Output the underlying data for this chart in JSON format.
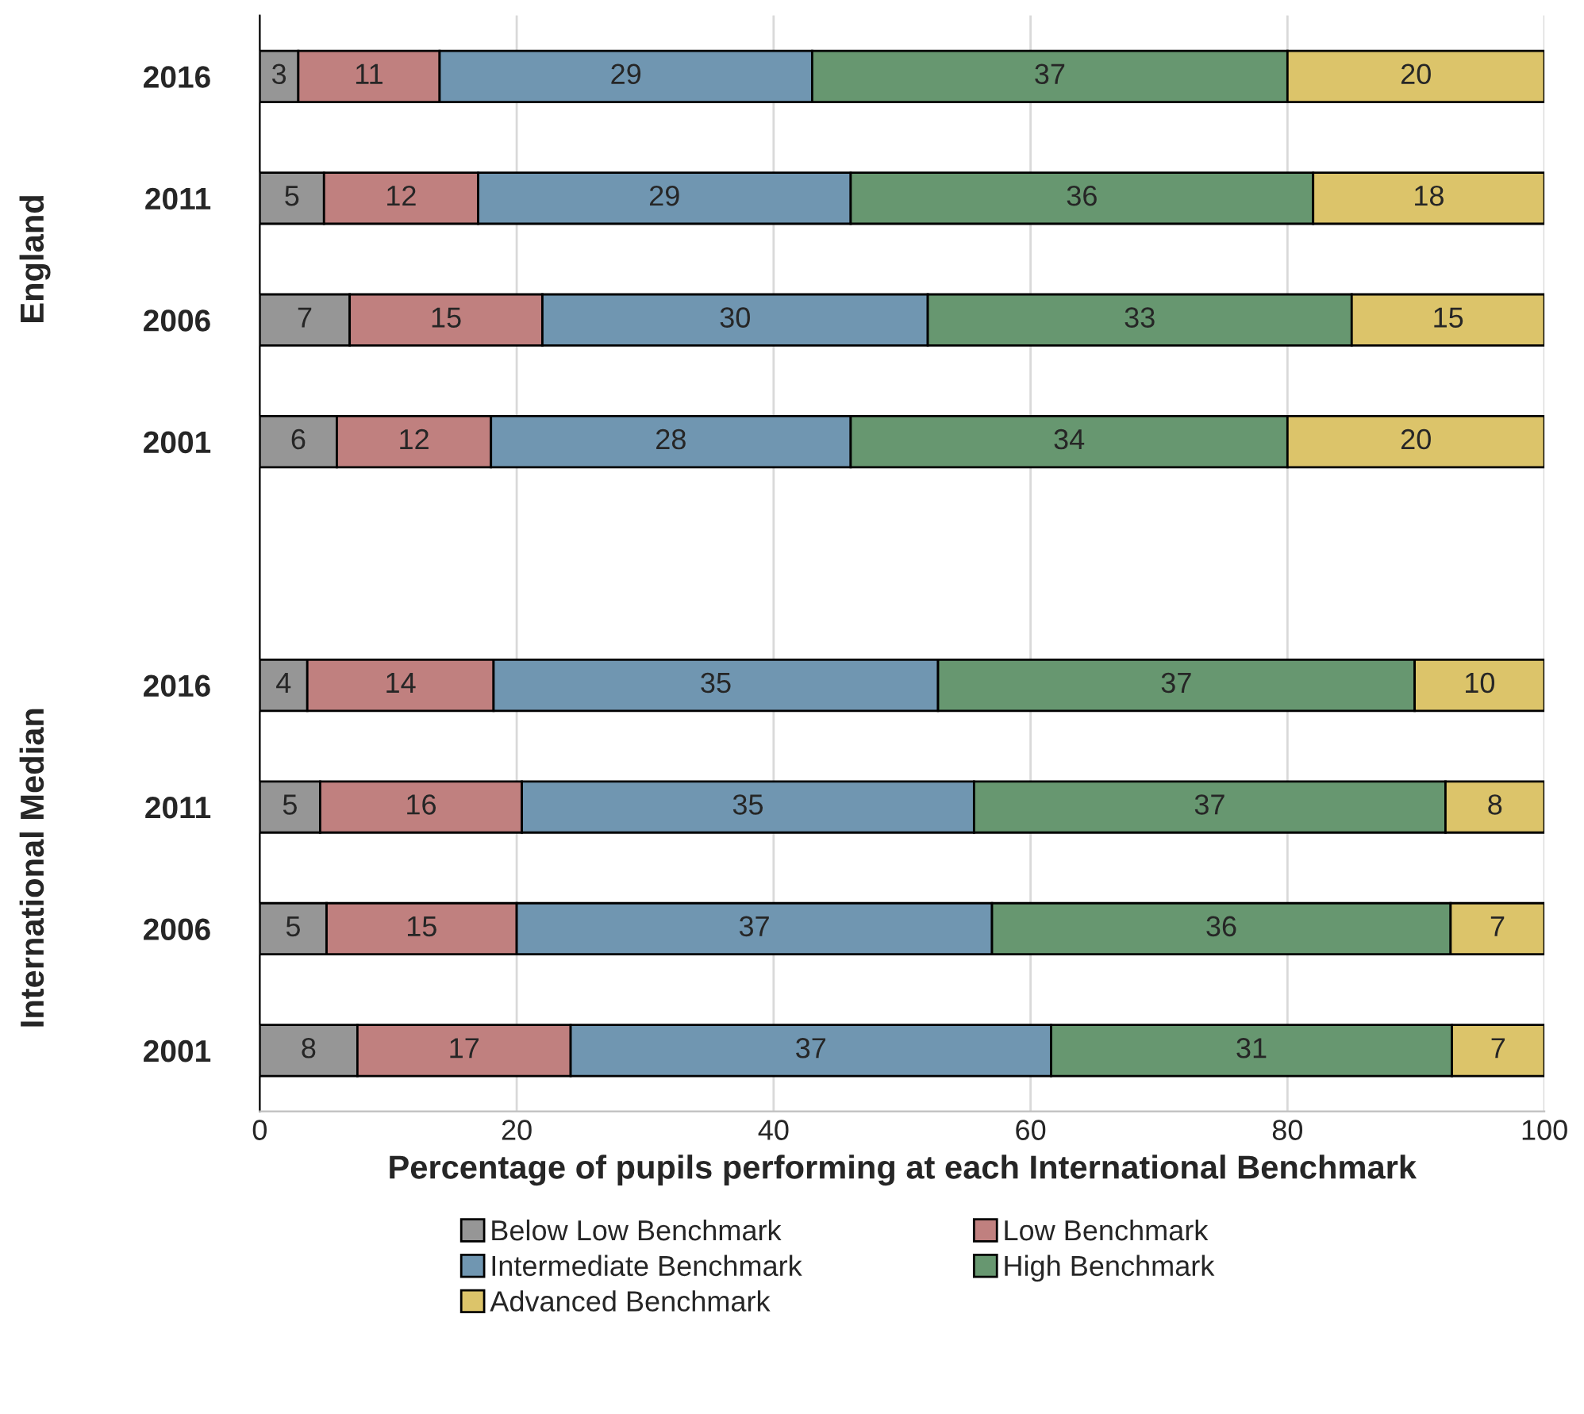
{
  "chart_data": {
    "type": "bar",
    "orientation": "horizontal",
    "stacked": true,
    "xlabel": "Percentage of pupils performing at each International Benchmark",
    "categories": [
      "2016",
      "2011",
      "2006",
      "2001",
      null,
      "2016",
      "2011",
      "2006",
      "2001"
    ],
    "annotations": [
      "England",
      "International Median"
    ],
    "series": [
      {
        "name": "Below Low Benchmark",
        "color": "#969696",
        "values": [
          3,
          5,
          7,
          6,
          null,
          3.7,
          4.7,
          5.2,
          7.6
        ],
        "value_labels": [
          "3",
          "5",
          "7",
          "6",
          null,
          "4",
          "5",
          "5",
          "8"
        ]
      },
      {
        "name": "Low Benchmark",
        "color": "#c0807f",
        "values": [
          11,
          12,
          15,
          12,
          null,
          14.5,
          15.7,
          14.8,
          16.6
        ],
        "value_labels": [
          "11",
          "12",
          "15",
          "12",
          null,
          "14",
          "16",
          "15",
          "17"
        ]
      },
      {
        "name": "Intermediate Benchmark",
        "color": "#7096b1",
        "values": [
          29,
          29,
          30,
          28,
          null,
          34.6,
          35.2,
          37.0,
          37.4
        ],
        "value_labels": [
          "29",
          "29",
          "30",
          "28",
          null,
          "35",
          "35",
          "37",
          "37"
        ]
      },
      {
        "name": "High Benchmark",
        "color": "#679770",
        "values": [
          37,
          36,
          33,
          34,
          null,
          37.1,
          36.7,
          35.7,
          31.2
        ],
        "value_labels": [
          "37",
          "36",
          "33",
          "34",
          null,
          "37",
          "37",
          "36",
          "31"
        ]
      },
      {
        "name": "Advanced Benchmark",
        "color": "#dcc46a",
        "values": [
          20,
          18,
          15,
          20,
          null,
          10.1,
          7.7,
          7.3,
          7.2
        ],
        "value_labels": [
          "20",
          "18",
          "15",
          "20",
          null,
          "10",
          "8",
          "7",
          "7"
        ]
      }
    ],
    "xlim": [
      0,
      100
    ],
    "xticks": [
      0,
      20,
      40,
      60,
      80,
      100
    ],
    "grid": "x",
    "legend": "bottom"
  }
}
